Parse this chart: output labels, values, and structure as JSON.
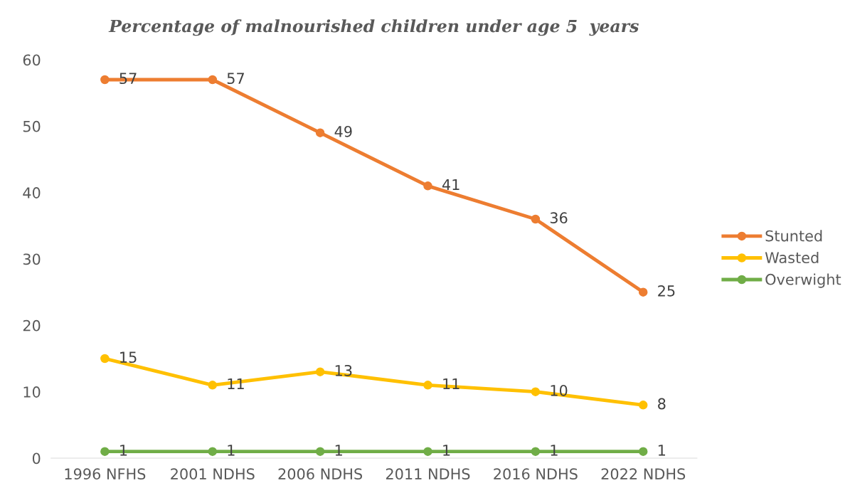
{
  "chart_data": {
    "type": "line",
    "title": "Percentage of malnourished children under age 5  years",
    "categories": [
      "1996 NFHS",
      "2001 NDHS",
      "2006 NDHS",
      "2011 NDHS",
      "2016 NDHS",
      "2022 NDHS"
    ],
    "series": [
      {
        "name": "Stunted",
        "color": "#ed7d31",
        "values": [
          57,
          57,
          49,
          41,
          36,
          25
        ]
      },
      {
        "name": "Wasted",
        "color": "#ffc000",
        "values": [
          15,
          11,
          13,
          11,
          10,
          8
        ]
      },
      {
        "name": "Overwight",
        "color": "#70ad47",
        "values": [
          1,
          1,
          1,
          1,
          1,
          1
        ]
      }
    ],
    "ylim": [
      0,
      60
    ],
    "yticks": [
      0,
      10,
      20,
      30,
      40,
      50,
      60
    ],
    "grid": false,
    "legend": "right",
    "marker": "circle",
    "line_style": "solid",
    "data_labels": true
  }
}
